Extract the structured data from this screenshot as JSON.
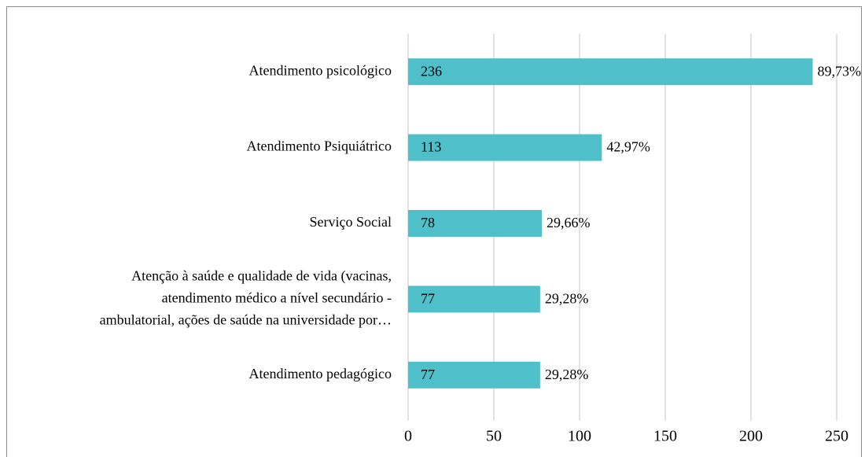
{
  "chart_data": {
    "type": "hbar",
    "categories": [
      "Atendimento psicológico",
      "Atendimento Psiquiátrico",
      "Serviço Social",
      "Atenção à saúde e qualidade de vida (vacinas,\natendimento médico a nível secundário -\nambulatorial, ações de saúde na universidade por…",
      "Atendimento pedagógico"
    ],
    "values": [
      236,
      113,
      78,
      77,
      77
    ],
    "percent_labels": [
      "89,73%",
      "42,97%",
      "29,66%",
      "29,28%",
      "29,28%"
    ],
    "color": "#4fbfca",
    "xlim": [
      0,
      250
    ],
    "xticks": [
      0,
      50,
      100,
      150,
      200,
      250
    ],
    "grid": true
  }
}
